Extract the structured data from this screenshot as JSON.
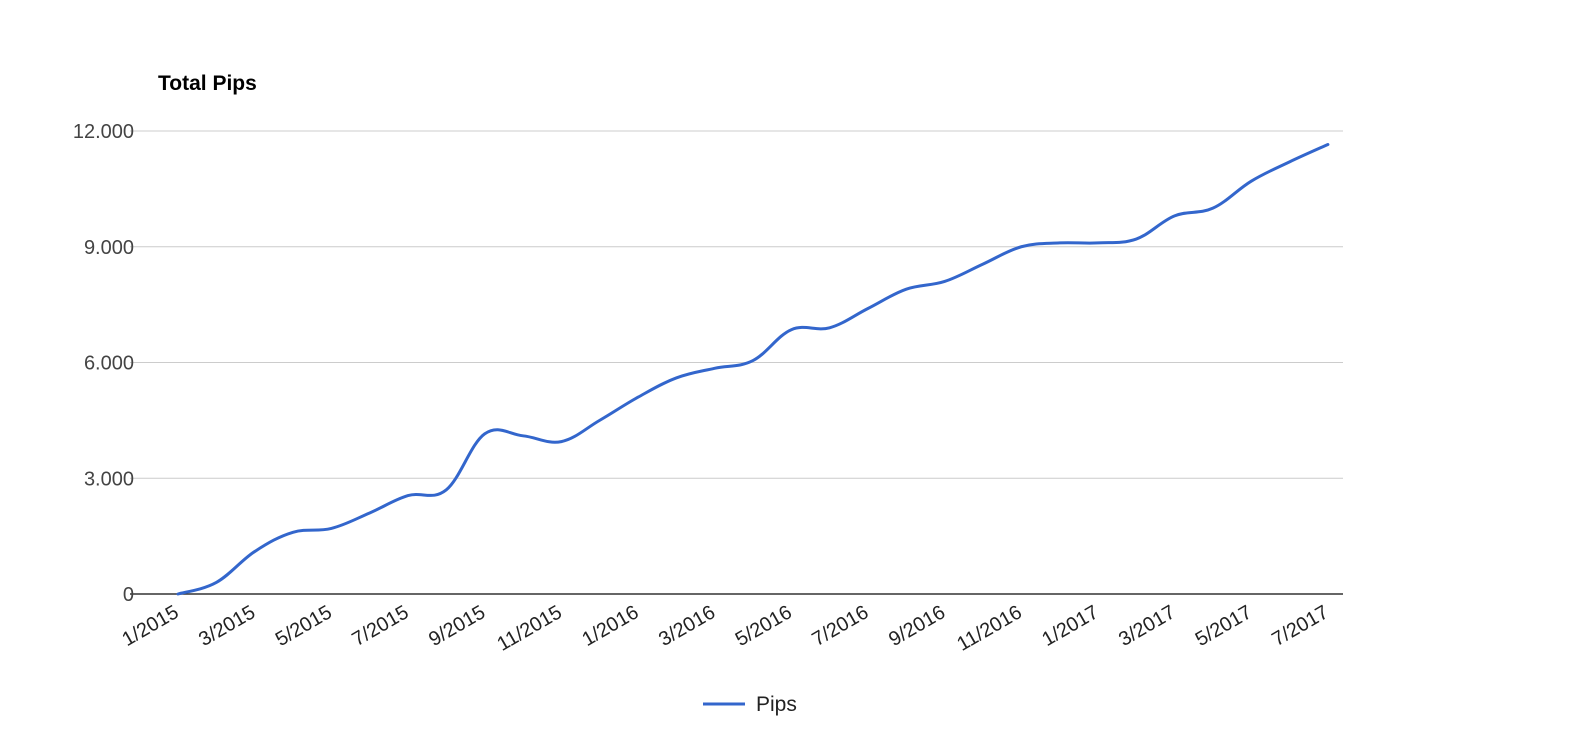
{
  "chart_data": {
    "type": "line",
    "title": "Total Pips",
    "xlabel": "",
    "ylabel": "",
    "ylim": [
      0,
      12000
    ],
    "yticks": [
      0,
      3000,
      6000,
      9000,
      12000
    ],
    "ytick_labels": [
      "0",
      "3.000",
      "6.000",
      "9.000",
      "12.000"
    ],
    "xtick_labels": [
      "1/2015",
      "3/2015",
      "5/2015",
      "7/2015",
      "9/2015",
      "11/2015",
      "1/2016",
      "3/2016",
      "5/2016",
      "7/2016",
      "9/2016",
      "11/2016",
      "1/2017",
      "3/2017",
      "5/2017",
      "7/2017"
    ],
    "x": [
      "1/2015",
      "2/2015",
      "3/2015",
      "4/2015",
      "5/2015",
      "6/2015",
      "7/2015",
      "8/2015",
      "9/2015",
      "10/2015",
      "11/2015",
      "12/2015",
      "1/2016",
      "2/2016",
      "3/2016",
      "4/2016",
      "5/2016",
      "6/2016",
      "7/2016",
      "8/2016",
      "9/2016",
      "10/2016",
      "11/2016",
      "12/2016",
      "1/2017",
      "2/2017",
      "3/2017",
      "4/2017",
      "5/2017",
      "6/2017",
      "7/2017"
    ],
    "series": [
      {
        "name": "Pips",
        "color": "#3366cc",
        "values": [
          0,
          300,
          1100,
          1600,
          1700,
          2100,
          2550,
          2700,
          4150,
          4100,
          3950,
          4500,
          5100,
          5600,
          5850,
          6050,
          6850,
          6900,
          7400,
          7900,
          8100,
          8550,
          9000,
          9100,
          9100,
          9200,
          9800,
          10000,
          10700,
          11200,
          11650
        ]
      }
    ],
    "grid": true,
    "legend": "bottom"
  }
}
